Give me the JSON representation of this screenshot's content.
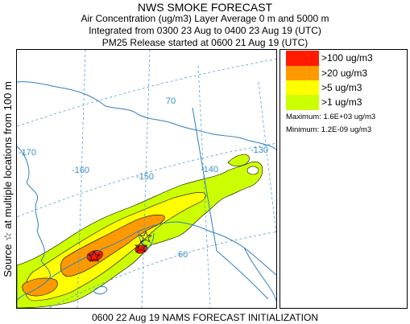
{
  "header": {
    "title": "NWS SMOKE FORECAST",
    "line2": "Air Concentration (ug/m3) Layer Average    0 m and  5000 m",
    "line3": "Integrated from 0300 23 Aug to 0400 23 Aug 19 (UTC)",
    "line4": "PM25 Release started at 0600 21 Aug 19 (UTC)"
  },
  "side_label": "Source ☆   at multiple locations   from   100 m",
  "footer": "0600 22 Aug 19 NAMS FORECAST INITIALIZATION",
  "legend": {
    "items": [
      {
        "label": ">100 ug/m3",
        "color": "#ff1a00"
      },
      {
        "label": ">20 ug/m3",
        "color": "#ff9900"
      },
      {
        "label": ">5 ug/m3",
        "color": "#ffff00"
      },
      {
        "label": ">1 ug/m3",
        "color": "#ccff00"
      }
    ],
    "maximum": "Maximum: 1.6E+03 ug/m3",
    "minimum": "Minimum: 1.2E-09 ug/m3"
  },
  "map": {
    "grid_labels": {
      "lon_170": "-170",
      "lon_160": "-160",
      "lon_150": "-150",
      "lon_140": "-140",
      "lon_130": "-130",
      "lat_70": "70",
      "lat_60": "60"
    },
    "colors": {
      "grid": "#4d9fd6",
      "coast": "#2f7fbf",
      "border": "#2f7fbf",
      "contour": "#000000"
    }
  }
}
